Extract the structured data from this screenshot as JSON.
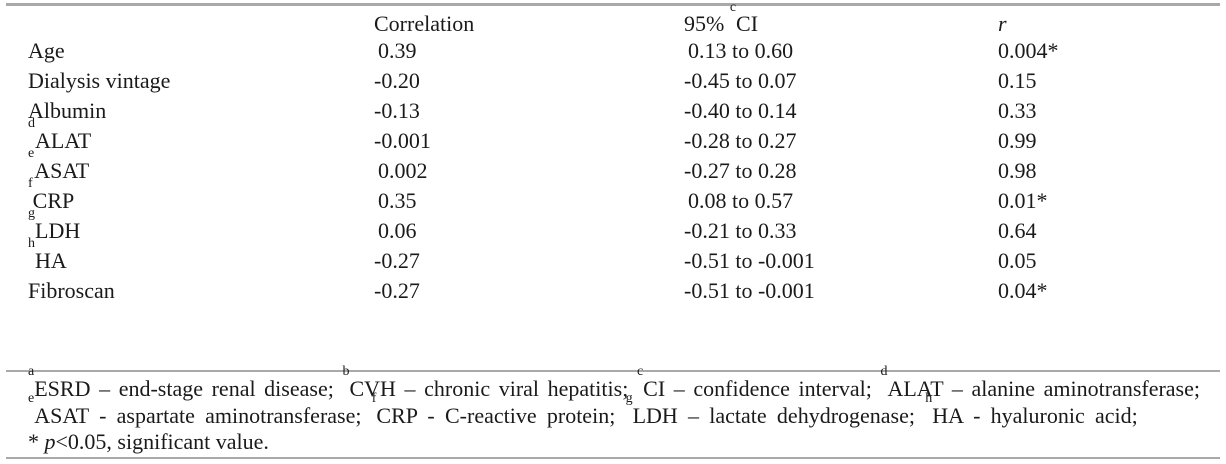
{
  "headers": {
    "variable": "",
    "correlation": "Correlation",
    "ci_prefix": "95% ",
    "ci_sup": "c",
    "ci_label": "CI",
    "r": "r"
  },
  "rows": [
    {
      "sup": "",
      "variable": "Age",
      "correlation": "0.39",
      "ci": "0.13 to 0.60",
      "r": "0.004*"
    },
    {
      "sup": "",
      "variable": "Dialysis vintage",
      "correlation": "-0.20",
      "ci": "-0.45 to 0.07",
      "r": "0.15"
    },
    {
      "sup": "",
      "variable": "Albumin",
      "correlation": "-0.13",
      "ci": "-0.40 to 0.14",
      "r": "0.33"
    },
    {
      "sup": "d",
      "variable": "ALAT",
      "correlation": "-0.001",
      "ci": "-0.28 to 0.27",
      "r": "0.99"
    },
    {
      "sup": "e",
      "variable": "ASAT",
      "correlation": "0.002",
      "ci": "-0.27 to 0.28",
      "r": "0.98"
    },
    {
      "sup": "f",
      "variable": "CRP",
      "correlation": "0.35",
      "ci": "0.08 to 0.57",
      "r": "0.01*"
    },
    {
      "sup": "g",
      "variable": "LDH",
      "correlation": "0.06",
      "ci": "-0.21 to 0.33",
      "r": "0.64"
    },
    {
      "sup": "h",
      "variable": "HA",
      "correlation": "-0.27",
      "ci": "-0.51 to -0.001",
      "r": "0.05"
    },
    {
      "sup": "",
      "variable": "Fibroscan",
      "correlation": "-0.27",
      "ci": "-0.51 to -0.001",
      "r": "0.04*"
    }
  ],
  "footnotes": [
    {
      "sup": "a",
      "text": "ESRD – end-stage renal disease; "
    },
    {
      "sup": "b",
      "text": "CVH – chronic viral hepatitis; "
    },
    {
      "sup": "c",
      "text": "CI – confidence interval; "
    },
    {
      "sup": "d",
      "text": "ALAT – alanine aminotransferase; "
    },
    {
      "sup": "e",
      "text": "ASAT - aspartate aminotransferase; "
    },
    {
      "sup": "f",
      "text": "CRP - C-reactive protein; "
    },
    {
      "sup": "g",
      "text": "LDH – lactate dehydrogenase; "
    },
    {
      "sup": "h",
      "text": "HA - hyaluronic acid;"
    }
  ],
  "significance": {
    "prefix": "* ",
    "p": "p",
    "text": "<0.05, significant value."
  }
}
